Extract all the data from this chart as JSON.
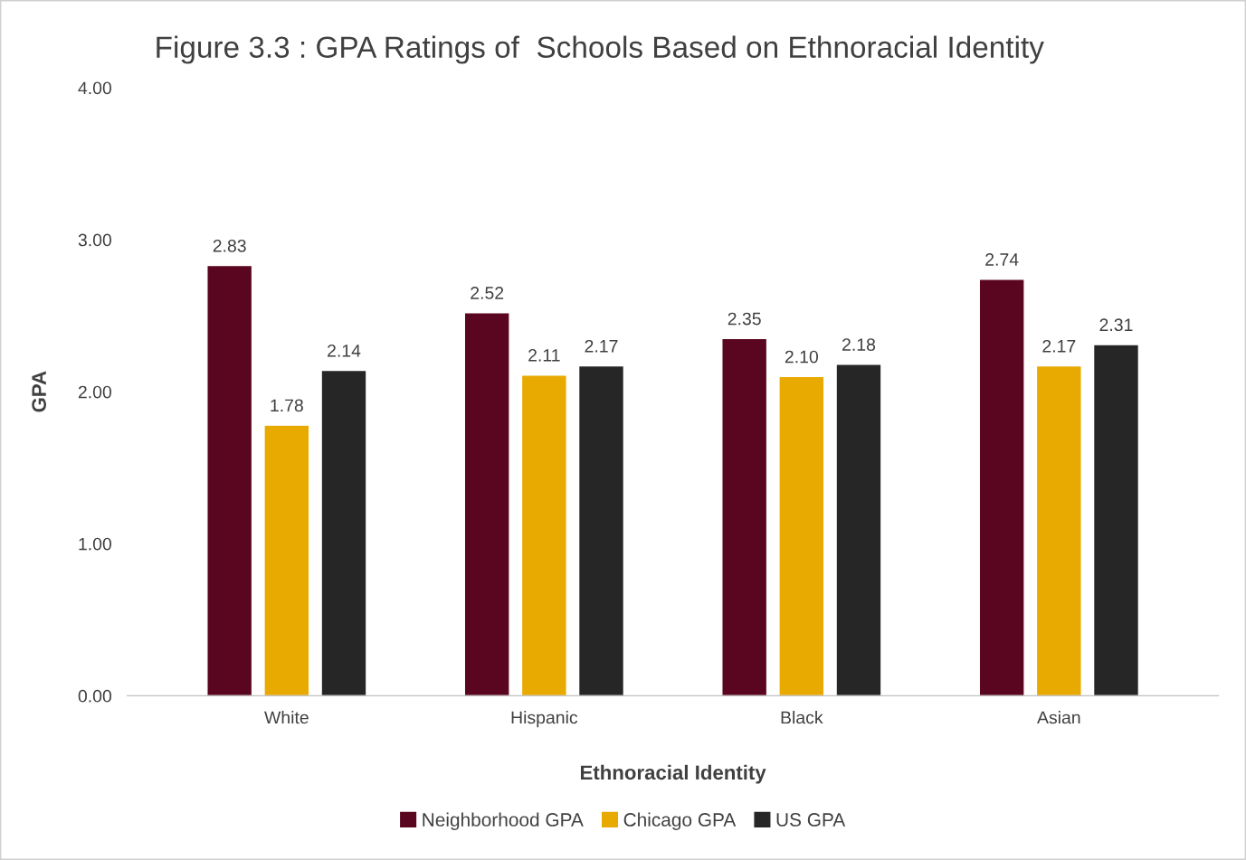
{
  "chart_data": {
    "type": "bar",
    "title": "Figure 3.3 : GPA Ratings of  Schools Based on Ethnoracial Identity",
    "xlabel": "Ethnoracial Identity",
    "ylabel": "GPA",
    "categories": [
      "White",
      "Hispanic",
      "Black",
      "Asian"
    ],
    "series": [
      {
        "name": "Neighborhood GPA",
        "color": "#5a0620",
        "values": [
          2.83,
          2.52,
          2.35,
          2.74
        ],
        "value_labels": [
          "2.83",
          "2.52",
          "2.35",
          "2.74"
        ]
      },
      {
        "name": "Chicago GPA",
        "color": "#e8a900",
        "values": [
          1.78,
          2.11,
          2.1,
          2.17
        ],
        "value_labels": [
          "1.78",
          "2.11",
          "2.10",
          "2.17"
        ]
      },
      {
        "name": "US GPA",
        "color": "#262626",
        "values": [
          2.14,
          2.17,
          2.18,
          2.31
        ],
        "value_labels": [
          "2.14",
          "2.17",
          "2.18",
          "2.31"
        ]
      }
    ],
    "ylim": [
      0,
      4
    ],
    "yticks": [
      {
        "value": 0,
        "label": "0.00"
      },
      {
        "value": 1,
        "label": "1.00"
      },
      {
        "value": 2,
        "label": "2.00"
      },
      {
        "value": 3,
        "label": "3.00"
      },
      {
        "value": 4,
        "label": "4.00"
      }
    ],
    "grid": false,
    "legend": "bottom"
  }
}
